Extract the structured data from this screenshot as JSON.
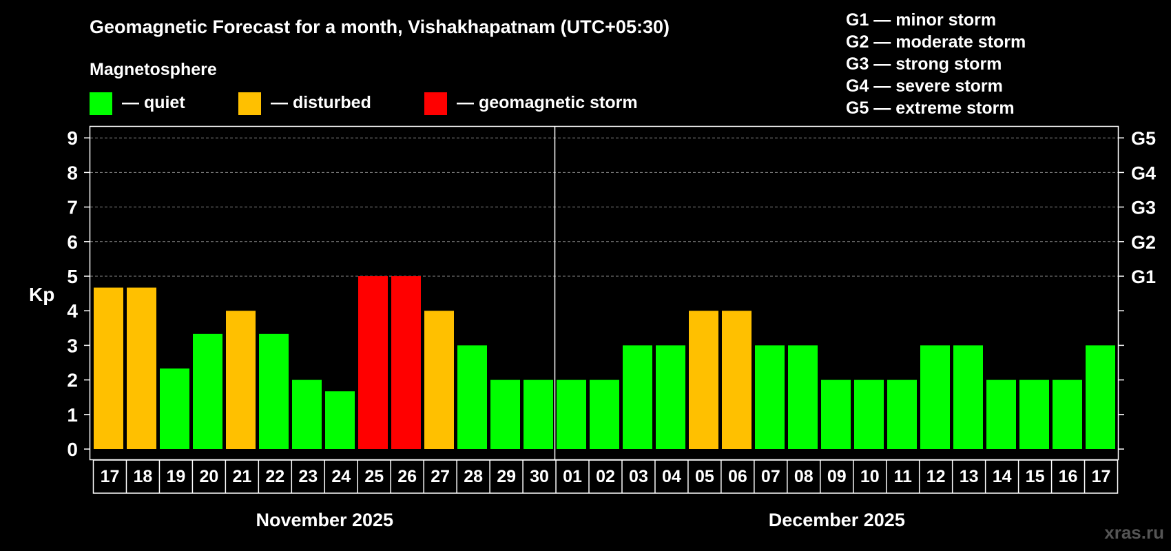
{
  "chart_data": {
    "type": "bar",
    "title": "Geomagnetic Forecast for a month, Vishakhapatnam (UTC+05:30)",
    "legend_title": "Magnetosphere",
    "legend": [
      {
        "label": "— quiet",
        "color": "#00ff00"
      },
      {
        "label": "— disturbed",
        "color": "#ffc000"
      },
      {
        "label": "— geomagnetic storm",
        "color": "#ff0000"
      }
    ],
    "storm_legend": [
      "G1 — minor storm",
      "G2 — moderate storm",
      "G3 — strong storm",
      "G4 — severe storm",
      "G5 — extreme storm"
    ],
    "ylabel": "Kp",
    "ylim": [
      0,
      9
    ],
    "yticks": [
      "0",
      "1",
      "2",
      "3",
      "4",
      "5",
      "6",
      "7",
      "8",
      "9"
    ],
    "right_ticks": [
      {
        "kp": 5,
        "label": "G1"
      },
      {
        "kp": 6,
        "label": "G2"
      },
      {
        "kp": 7,
        "label": "G3"
      },
      {
        "kp": 8,
        "label": "G4"
      },
      {
        "kp": 9,
        "label": "G5"
      }
    ],
    "categories": [
      "17",
      "18",
      "19",
      "20",
      "21",
      "22",
      "23",
      "24",
      "25",
      "26",
      "27",
      "28",
      "29",
      "30",
      "01",
      "02",
      "03",
      "04",
      "05",
      "06",
      "07",
      "08",
      "09",
      "10",
      "11",
      "12",
      "13",
      "14",
      "15",
      "16",
      "17"
    ],
    "values": [
      4.67,
      4.67,
      2.33,
      3.33,
      4,
      3.33,
      2,
      1.67,
      5,
      5,
      4,
      3,
      2,
      2,
      2,
      2,
      3,
      3,
      4,
      4,
      3,
      3,
      2,
      2,
      2,
      3,
      3,
      2,
      2,
      2,
      3
    ],
    "status": [
      "disturbed",
      "disturbed",
      "quiet",
      "quiet",
      "disturbed",
      "quiet",
      "quiet",
      "quiet",
      "storm",
      "storm",
      "disturbed",
      "quiet",
      "quiet",
      "quiet",
      "quiet",
      "quiet",
      "quiet",
      "quiet",
      "disturbed",
      "disturbed",
      "quiet",
      "quiet",
      "quiet",
      "quiet",
      "quiet",
      "quiet",
      "quiet",
      "quiet",
      "quiet",
      "quiet",
      "quiet"
    ],
    "status_colors": {
      "quiet": "#00ff00",
      "disturbed": "#ffc000",
      "storm": "#ff0000"
    },
    "months": [
      {
        "label": "November 2025",
        "days": 14
      },
      {
        "label": "December 2025",
        "days": 17
      }
    ]
  },
  "watermark": "xras.ru"
}
